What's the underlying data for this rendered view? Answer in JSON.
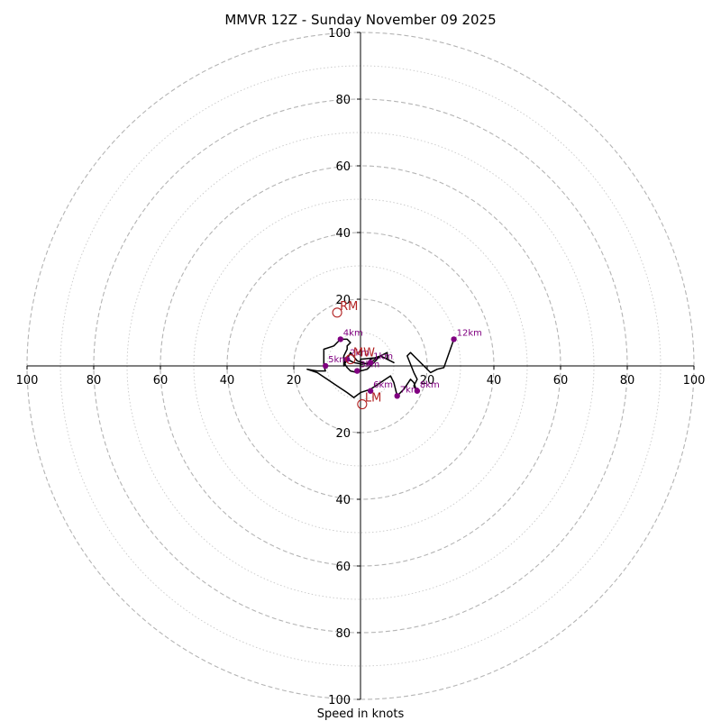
{
  "chart_data": {
    "type": "hodograph",
    "title": "MMVR 12Z - Sunday November 09 2025",
    "xlabel": "Speed in knots",
    "ylabel": "",
    "xlim": [
      -100,
      100
    ],
    "ylim": [
      -100,
      100
    ],
    "grid": "concentric rings every 10 kt (dashed every 20 kt, dotted between)",
    "ring_major_step": 20,
    "ring_minor_step": 10,
    "x_tick_labels": [
      "100",
      "80",
      "60",
      "40",
      "20",
      "20",
      "40",
      "60",
      "80",
      "100"
    ],
    "x_tick_values": [
      -100,
      -80,
      -60,
      -40,
      -20,
      20,
      40,
      60,
      80,
      100
    ],
    "y_tick_labels": [
      "100",
      "80",
      "60",
      "40",
      "20",
      "20",
      "40",
      "60",
      "80",
      "100"
    ],
    "y_tick_values": [
      100,
      80,
      60,
      40,
      20,
      -20,
      -40,
      -60,
      -80,
      -100
    ],
    "hodograph_color": "#000000",
    "height_marker_color": "#800080",
    "storm_motion_color": "#b22222",
    "grid_color": "#b0b0b0",
    "hodograph": [
      [
        0,
        -1.5
      ],
      [
        0,
        2
      ],
      [
        5,
        2.5
      ],
      [
        3,
        1
      ],
      [
        0.5,
        0.5
      ],
      [
        -2,
        1
      ],
      [
        -4,
        2
      ],
      [
        -5,
        1
      ],
      [
        -4,
        -0.5
      ],
      [
        -3,
        -1.5
      ],
      [
        -1,
        -2
      ],
      [
        0,
        -1.5
      ],
      [
        2,
        -1
      ],
      [
        6,
        3
      ],
      [
        8,
        4
      ],
      [
        8,
        2
      ],
      [
        10,
        1
      ],
      [
        6,
        3
      ],
      [
        3,
        2
      ],
      [
        2,
        0.5
      ],
      [
        -1,
        1.5
      ],
      [
        -3,
        4
      ],
      [
        -4,
        2
      ],
      [
        -5,
        0
      ],
      [
        -5,
        3
      ],
      [
        -4,
        5
      ],
      [
        -4,
        6
      ],
      [
        -3,
        7
      ],
      [
        -4,
        8
      ],
      [
        -6,
        8
      ],
      [
        -8,
        6
      ],
      [
        -11,
        5
      ],
      [
        -11,
        2
      ],
      [
        -11,
        0
      ],
      [
        -10.5,
        -1.5
      ],
      [
        -13,
        -1.5
      ],
      [
        -16,
        -1
      ],
      [
        -13,
        -2
      ],
      [
        -10,
        -4
      ],
      [
        -7,
        -6
      ],
      [
        -4,
        -8
      ],
      [
        -2,
        -9.5
      ],
      [
        0,
        -8
      ],
      [
        3,
        -7
      ],
      [
        6,
        -5
      ],
      [
        7.5,
        -4
      ],
      [
        9,
        -3
      ],
      [
        10,
        -5
      ],
      [
        11,
        -9
      ],
      [
        13,
        -7
      ],
      [
        15,
        -4
      ],
      [
        16,
        -5
      ],
      [
        17,
        -8
      ],
      [
        16,
        -6
      ],
      [
        17,
        -4
      ],
      [
        16,
        -2
      ],
      [
        14,
        3
      ],
      [
        15,
        4
      ],
      [
        17,
        2
      ],
      [
        19,
        0
      ],
      [
        21,
        -2
      ],
      [
        22,
        -1.5
      ],
      [
        23,
        -1
      ],
      [
        25,
        -0.5
      ],
      [
        28,
        8
      ]
    ],
    "height_markers": [
      {
        "label": "1km",
        "x": 3,
        "y": 1
      },
      {
        "label": "2km",
        "x": -4,
        "y": 2
      },
      {
        "label": "3km",
        "x": -1,
        "y": -1.5
      },
      {
        "label": "4km",
        "x": -6,
        "y": 8
      },
      {
        "label": "5km",
        "x": -10.5,
        "y": 0
      },
      {
        "label": "6km",
        "x": 3,
        "y": -7.5
      },
      {
        "label": "7km",
        "x": 11,
        "y": -9
      },
      {
        "label": "8km",
        "x": 17,
        "y": -7.5
      },
      {
        "label": "12km",
        "x": 28,
        "y": 8
      }
    ],
    "storm_motion": [
      {
        "label": "RM",
        "x": -7,
        "y": 16
      },
      {
        "label": "LM",
        "x": 0.5,
        "y": -11.5
      },
      {
        "label": "MW",
        "x": -3,
        "y": 2
      }
    ]
  }
}
